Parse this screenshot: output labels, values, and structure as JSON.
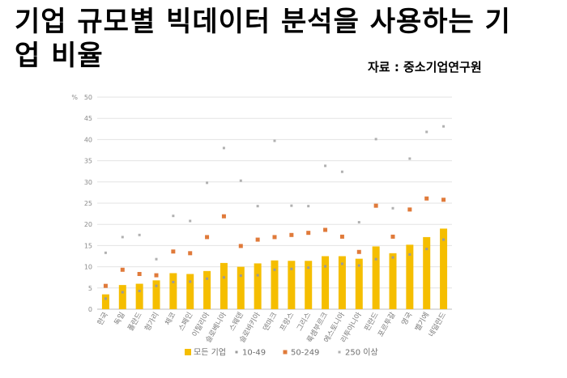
{
  "title": "기업 규모별 빅데이터 분석을 사용하는 기업 비율",
  "source": "자료 : 중소기업연구원",
  "chart_data": {
    "type": "bar",
    "y_unit": "%",
    "ylim": [
      0,
      50
    ],
    "yticks": [
      0,
      5,
      10,
      15,
      20,
      25,
      30,
      35,
      40,
      45,
      50
    ],
    "grid": true,
    "legend_position": "bottom",
    "categories": [
      "한국",
      "독일",
      "폴란드",
      "헝가리",
      "체코",
      "스페인",
      "이탈리아",
      "슬로베니아",
      "스웨덴",
      "슬로바키아",
      "덴마크",
      "프랑스",
      "그리스",
      "룩셈부르크",
      "에스토니아",
      "리투아니아",
      "핀란드",
      "포르투갈",
      "영국",
      "벨기에",
      "네덜란드"
    ],
    "series": [
      {
        "name": "모든 기업",
        "kind": "bar",
        "color": "#f5be00",
        "values": [
          3.5,
          5.7,
          6.0,
          6.8,
          8.5,
          8.3,
          9.0,
          10.9,
          10.0,
          10.8,
          11.5,
          11.4,
          11.4,
          12.5,
          12.5,
          11.9,
          14.8,
          13.2,
          15.2,
          17.0,
          19.0
        ]
      },
      {
        "name": "10-49",
        "kind": "marker",
        "color": "#9a9a9a",
        "values": [
          2.5,
          4.0,
          4.3,
          5.5,
          6.4,
          6.5,
          7.2,
          7.5,
          7.9,
          8.0,
          9.3,
          9.5,
          9.8,
          10.1,
          10.7,
          10.3,
          11.8,
          12.2,
          12.9,
          14.2,
          16.4
        ]
      },
      {
        "name": "50-249",
        "kind": "marker",
        "color": "#e07a3a",
        "values": [
          5.5,
          9.3,
          8.3,
          8.0,
          13.6,
          13.2,
          17.0,
          21.9,
          14.9,
          16.4,
          17.0,
          17.5,
          18.0,
          18.7,
          17.1,
          13.5,
          24.4,
          17.1,
          23.5,
          26.1,
          25.8
        ]
      },
      {
        "name": "250 이상",
        "kind": "marker",
        "color": "#b0b0b0",
        "values": [
          13.3,
          17.0,
          17.5,
          11.8,
          22.0,
          20.8,
          29.8,
          38.0,
          30.3,
          24.3,
          39.7,
          24.4,
          24.3,
          33.8,
          32.4,
          20.5,
          40.1,
          23.8,
          35.5,
          41.8,
          43.1
        ]
      }
    ]
  }
}
